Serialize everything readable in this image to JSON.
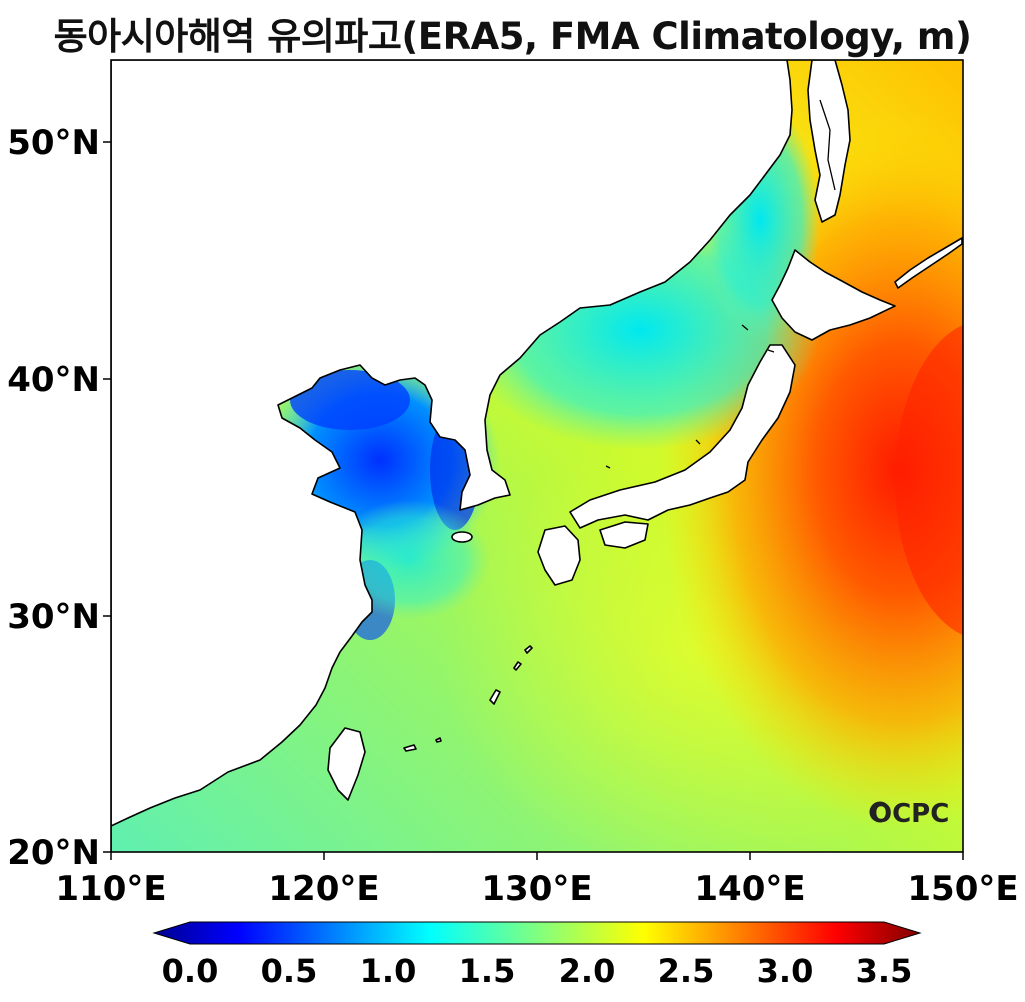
{
  "title": "동아시아해역 유의파고(ERA5, FMA Climatology, m)",
  "logo": "OCPC",
  "x_ticks": [
    "110°E",
    "120°E",
    "130°E",
    "140°E",
    "150°E"
  ],
  "y_ticks": [
    "20°N",
    "30°N",
    "40°N",
    "50°N"
  ],
  "colorbar": {
    "ticks": [
      "0.0",
      "0.5",
      "1.0",
      "1.5",
      "2.0",
      "2.5",
      "3.0",
      "3.5"
    ],
    "colormap": "jet",
    "range": [
      0,
      3.5
    ],
    "extend": "both"
  },
  "map_extent": {
    "lon": [
      110,
      150
    ],
    "lat": [
      20,
      53.5
    ]
  },
  "colors": {
    "land": "#ffffff",
    "coastline": "#000000",
    "max_wave": "#ff2000",
    "min_wave": "#0000e0"
  }
}
